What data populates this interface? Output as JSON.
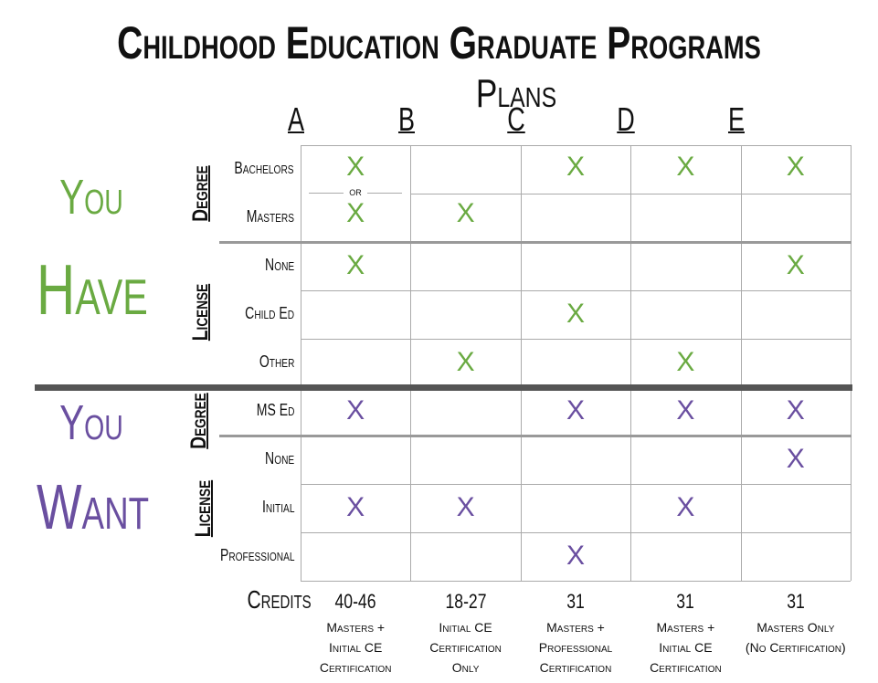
{
  "title": "Childhood Education Graduate Programs",
  "subtitle": "Plans",
  "plans": [
    "A",
    "B",
    "C",
    "D",
    "E"
  ],
  "sections": {
    "have_line1": "You",
    "have_line2": "Have",
    "want_line1": "You",
    "want_line2": "Want"
  },
  "groups": {
    "have_degree": "Degree",
    "have_license": "License",
    "want_degree": "Degree",
    "want_license": "License"
  },
  "or_label": "or",
  "rows": [
    {
      "label": "Bachelors",
      "section": "have",
      "marks": [
        "X",
        "",
        "X",
        "X",
        "X"
      ]
    },
    {
      "label": "Masters",
      "section": "have",
      "marks": [
        "X",
        "X",
        "",
        "",
        ""
      ]
    },
    {
      "label": "None",
      "section": "have",
      "marks": [
        "X",
        "",
        "",
        "",
        "X"
      ]
    },
    {
      "label": "Child Ed",
      "section": "have",
      "marks": [
        "",
        "",
        "X",
        "",
        ""
      ]
    },
    {
      "label": "Other",
      "section": "have",
      "marks": [
        "",
        "X",
        "",
        "X",
        ""
      ]
    },
    {
      "label": "MS Ed",
      "section": "want",
      "marks": [
        "X",
        "",
        "X",
        "X",
        "X"
      ]
    },
    {
      "label": "None",
      "section": "want",
      "marks": [
        "",
        "",
        "",
        "",
        "X"
      ]
    },
    {
      "label": "Initial",
      "section": "want",
      "marks": [
        "X",
        "X",
        "",
        "X",
        ""
      ]
    },
    {
      "label": "Professional",
      "section": "want",
      "marks": [
        "",
        "",
        "X",
        "",
        ""
      ]
    }
  ],
  "credits_label": "Credits",
  "credits": [
    {
      "value": "40-46",
      "desc": [
        "Masters +",
        "Initial CE",
        "Certification"
      ]
    },
    {
      "value": "18-27",
      "desc": [
        "Initial CE",
        "Certification",
        "Only"
      ]
    },
    {
      "value": "31",
      "desc": [
        "Masters +",
        "Professional",
        "Certification"
      ]
    },
    {
      "value": "31",
      "desc": [
        "Masters +",
        "Initial CE",
        "Certification"
      ]
    },
    {
      "value": "31",
      "desc": [
        "Masters Only",
        "(No Certification)"
      ]
    }
  ],
  "colors": {
    "have": "#6aaa42",
    "want": "#6a4fa0",
    "grid": "#aaaaaa",
    "divider": "#555555"
  }
}
